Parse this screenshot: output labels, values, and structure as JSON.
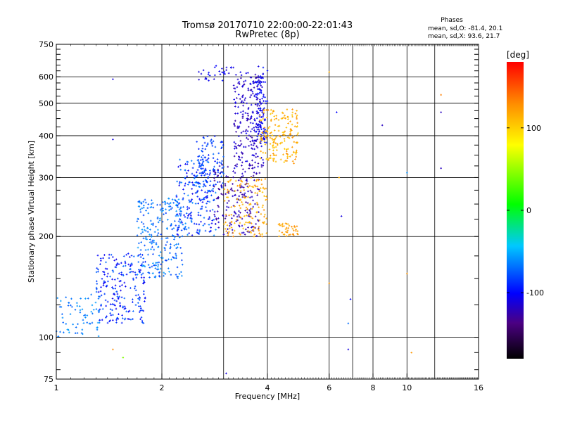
{
  "chart_data": {
    "type": "scatter",
    "title": "Tromsø 20170710 22:00:00-22:01:43",
    "subtitle": "RwPretec (8p)",
    "xlabel": "Frequency [MHz]",
    "ylabel": "Stationary phase Virtual Height [km]",
    "x_scale": "log",
    "y_scale": "log",
    "xlim": [
      1,
      16
    ],
    "ylim": [
      75,
      750
    ],
    "x_ticks": [
      1,
      2,
      4,
      6,
      8,
      10,
      16
    ],
    "x_tick_labels": [
      "1",
      "2",
      "4",
      "6",
      "8",
      "10",
      "16"
    ],
    "x_grid": [
      1,
      2,
      3,
      4,
      6,
      7,
      8,
      10,
      12,
      16
    ],
    "y_ticks": [
      75,
      100,
      200,
      300,
      400,
      500,
      600,
      750
    ],
    "y_tick_labels": [
      "75",
      "100",
      "200",
      "300",
      "400",
      "500",
      "600",
      "750"
    ],
    "y_grid": [
      100,
      200,
      300,
      400,
      500,
      600
    ],
    "grid": true,
    "phases_box": {
      "title": "Phases",
      "line1": "mean, sd,O: -81.4, 20.1",
      "line2": "mean, sd,X:  93.6, 21.7"
    },
    "colorbar": {
      "label": "[deg]",
      "range": [
        -180,
        180
      ],
      "ticks": [
        100,
        0,
        -100
      ],
      "tick_labels": [
        "100",
        "0",
        "-100"
      ]
    },
    "clusters": [
      {
        "f": [
          1.0,
          1.35
        ],
        "h": [
          100,
          135
        ],
        "phase": [
          -75,
          -55
        ],
        "n": 70
      },
      {
        "f": [
          1.3,
          1.8
        ],
        "h": [
          110,
          180
        ],
        "phase": [
          -110,
          -70
        ],
        "n": 220
      },
      {
        "f": [
          1.7,
          2.3
        ],
        "h": [
          150,
          260
        ],
        "phase": [
          -85,
          -55
        ],
        "n": 240
      },
      {
        "f": [
          2.2,
          2.85
        ],
        "h": [
          200,
          340
        ],
        "phase": [
          -110,
          -60
        ],
        "n": 220
      },
      {
        "f": [
          2.5,
          3.0
        ],
        "h": [
          280,
          400
        ],
        "phase": [
          -95,
          -70
        ],
        "n": 100
      },
      {
        "f": [
          2.8,
          3.8
        ],
        "h": [
          200,
          330
        ],
        "phase": [
          -135,
          -115
        ],
        "n": 180
      },
      {
        "f": [
          3.2,
          3.9
        ],
        "h": [
          320,
          620
        ],
        "phase": [
          -130,
          -105
        ],
        "n": 240
      },
      {
        "f": [
          3.7,
          4.0
        ],
        "h": [
          380,
          650
        ],
        "phase": [
          -110,
          -90
        ],
        "n": 90
      },
      {
        "f": [
          3.0,
          4.0
        ],
        "h": [
          200,
          300
        ],
        "phase": [
          100,
          125
        ],
        "n": 140
      },
      {
        "f": [
          3.8,
          4.9
        ],
        "h": [
          330,
          480
        ],
        "phase": [
          95,
          125
        ],
        "n": 180
      },
      {
        "f": [
          4.3,
          4.9
        ],
        "h": [
          200,
          220
        ],
        "phase": [
          110,
          125
        ],
        "n": 40
      },
      {
        "f": [
          2.5,
          3.2
        ],
        "h": [
          580,
          650
        ],
        "phase": [
          -115,
          -95
        ],
        "n": 30
      }
    ],
    "points": [
      {
        "f": 1.45,
        "h": 590,
        "phase": -110
      },
      {
        "f": 1.45,
        "h": 390,
        "phase": -110
      },
      {
        "f": 1.45,
        "h": 92,
        "phase": 125
      },
      {
        "f": 1.55,
        "h": 87,
        "phase": 40
      },
      {
        "f": 3.05,
        "h": 78,
        "phase": -110
      },
      {
        "f": 6.0,
        "h": 620,
        "phase": 110
      },
      {
        "f": 6.3,
        "h": 470,
        "phase": -100
      },
      {
        "f": 6.4,
        "h": 300,
        "phase": 110
      },
      {
        "f": 6.5,
        "h": 230,
        "phase": -110
      },
      {
        "f": 6.8,
        "h": 110,
        "phase": -70
      },
      {
        "f": 6.8,
        "h": 92,
        "phase": -110
      },
      {
        "f": 8.5,
        "h": 430,
        "phase": -120
      },
      {
        "f": 10.0,
        "h": 310,
        "phase": -60
      },
      {
        "f": 10.0,
        "h": 155,
        "phase": 120
      },
      {
        "f": 10.3,
        "h": 90,
        "phase": 120
      },
      {
        "f": 12.5,
        "h": 530,
        "phase": 130
      },
      {
        "f": 12.5,
        "h": 470,
        "phase": -120
      },
      {
        "f": 12.5,
        "h": 320,
        "phase": -120
      },
      {
        "f": 6.0,
        "h": 145,
        "phase": 120
      },
      {
        "f": 6.9,
        "h": 130,
        "phase": -100
      }
    ]
  }
}
